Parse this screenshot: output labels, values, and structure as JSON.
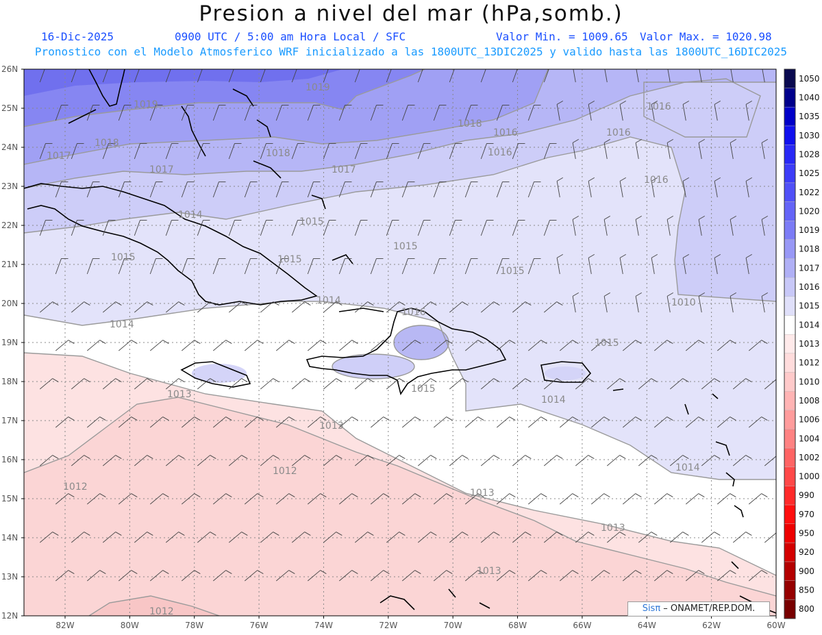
{
  "header": {
    "title": "Presion a nivel del mar (hPa,somb.)",
    "date": "16-Dic-2025",
    "time": "0900 UTC / 5:00 am Hora Local / SFC",
    "min": "Valor Min. = 1009.65",
    "max": "Valor Max. = 1020.98",
    "forecast": "Pronostico con el Modelo Atmosferico WRF inicializado a las 1800UTC_13DIC2025 y valido hasta las  1800UTC_16DIC2025"
  },
  "axes": {
    "lat_labels": [
      "26N",
      "25N",
      "24N",
      "23N",
      "22N",
      "21N",
      "20N",
      "19N",
      "18N",
      "17N",
      "16N",
      "15N",
      "14N",
      "13N",
      "12N"
    ],
    "lon_labels": [
      "82W",
      "80W",
      "78W",
      "76W",
      "74W",
      "72W",
      "70W",
      "68W",
      "66W",
      "64W",
      "62W",
      "60W"
    ]
  },
  "colorbar": {
    "levels": [
      "1050",
      "1040",
      "1035",
      "1030",
      "1028",
      "1025",
      "1022",
      "1020",
      "1019",
      "1018",
      "1017",
      "1016",
      "1015",
      "1014",
      "1013",
      "1012",
      "1010",
      "1008",
      "1006",
      "1004",
      "1002",
      "1000",
      "990",
      "970",
      "950",
      "920",
      "900",
      "850",
      "800"
    ],
    "colors": [
      "#0a0a50",
      "#00008b",
      "#0000c8",
      "#1010ee",
      "#2828f6",
      "#3c3cf8",
      "#5050f8",
      "#6464f8",
      "#7c7cf6",
      "#9898f6",
      "#b0b0f6",
      "#c8c8f8",
      "#e0e0fa",
      "#ffffff",
      "#ffeaea",
      "#ffdcdc",
      "#ffcaca",
      "#ffb4b4",
      "#ff9c9c",
      "#ff8282",
      "#ff6464",
      "#ff4848",
      "#ff2a2a",
      "#ff0e0e",
      "#ee0000",
      "#d40000",
      "#b40000",
      "#960000",
      "#780000"
    ]
  },
  "contour_labels": [
    "1019",
    "1019",
    "1018",
    "1017",
    "1018",
    "1017",
    "1018",
    "1017",
    "1016",
    "1016",
    "1016",
    "1016",
    "1016",
    "1015",
    "1015",
    "1015",
    "1015",
    "1015",
    "1015",
    "1014",
    "1014",
    "1013",
    "1013",
    "1014",
    "1014",
    "1013",
    "1012",
    "1012",
    "1013",
    "1013",
    "1012",
    "1010",
    "1016",
    "1015",
    "1014"
  ],
  "credit": {
    "brand": "Sisπ",
    "text": " – ONAMET/REP.DOM."
  }
}
